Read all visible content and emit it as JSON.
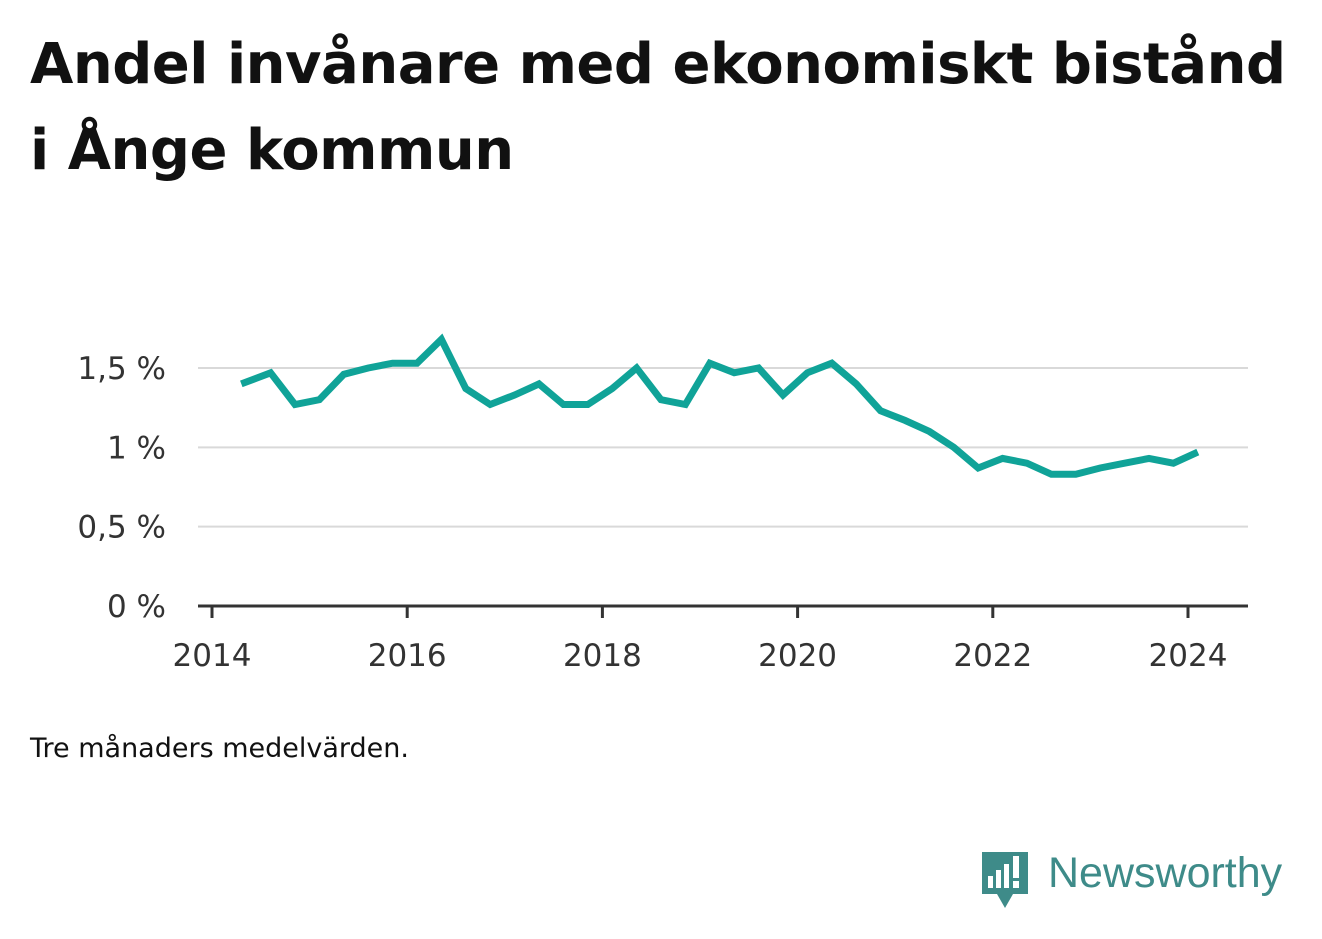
{
  "title": "Andel invånare med ekonomiskt bistånd i Ånge kommun",
  "note": "Tre månaders medelvärden.",
  "brand": {
    "name": "Newsworthy",
    "icon": "bar-chart-speech-bubble-icon",
    "color": "#3e8b89"
  },
  "chart_data": {
    "type": "line",
    "title": "Andel invånare med ekonomiskt bistånd i Ånge kommun",
    "xlabel": "",
    "ylabel": "",
    "x_ticks": [
      "2014",
      "2016",
      "2018",
      "2020",
      "2022",
      "2024"
    ],
    "y_ticks": [
      "0 %",
      "0,5 %",
      "1 %",
      "1,5 %"
    ],
    "xlim": [
      2014,
      2024.6
    ],
    "ylim": [
      0,
      1.5
    ],
    "grid": true,
    "legend": "none",
    "series": [
      {
        "color": "#10a398",
        "x": [
          2014.3,
          2014.6,
          2014.85,
          2015.1,
          2015.35,
          2015.6,
          2015.85,
          2016.1,
          2016.35,
          2016.6,
          2016.85,
          2017.1,
          2017.35,
          2017.6,
          2017.85,
          2018.1,
          2018.35,
          2018.6,
          2018.85,
          2019.1,
          2019.35,
          2019.6,
          2019.85,
          2020.1,
          2020.35,
          2020.6,
          2020.85,
          2021.1,
          2021.35,
          2021.6,
          2021.85,
          2022.1,
          2022.35,
          2022.6,
          2022.85,
          2023.1,
          2023.35,
          2023.6,
          2023.85,
          2024.1
        ],
        "y": [
          1.4,
          1.47,
          1.27,
          1.3,
          1.46,
          1.5,
          1.53,
          1.53,
          1.68,
          1.37,
          1.27,
          1.33,
          1.4,
          1.27,
          1.27,
          1.37,
          1.5,
          1.3,
          1.27,
          1.53,
          1.47,
          1.5,
          1.33,
          1.47,
          1.53,
          1.4,
          1.23,
          1.17,
          1.1,
          1.0,
          0.87,
          0.93,
          0.9,
          0.83,
          0.83,
          0.87,
          0.9,
          0.93,
          0.9,
          0.97
        ]
      }
    ]
  }
}
